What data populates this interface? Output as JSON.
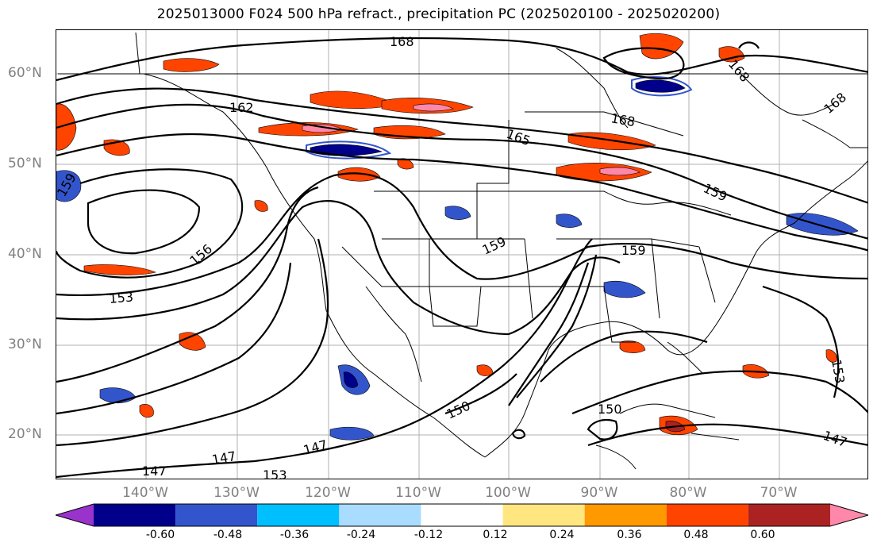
{
  "title": "2025013000 F024 500 hPa refract., precipitation PC (2025020100 - 2025020200)",
  "lat_labels": [
    "60°N",
    "50°N",
    "40°N",
    "30°N",
    "20°N"
  ],
  "lon_labels": [
    "140°W",
    "130°W",
    "120°W",
    "110°W",
    "100°W",
    "90°W",
    "80°W",
    "70°W"
  ],
  "contour_labels": [
    "168",
    "162",
    "165",
    "168",
    "168",
    "168",
    "159",
    "159",
    "156",
    "159",
    "159",
    "153",
    "153",
    "150",
    "150",
    "147",
    "147",
    "147",
    "147",
    "153"
  ],
  "colorbar": {
    "ticks": [
      "-0.60",
      "-0.48",
      "-0.36",
      "-0.24",
      "-0.12",
      "0.12",
      "0.24",
      "0.36",
      "0.48",
      "0.60"
    ],
    "colors": [
      "#9933cc",
      "#00008b",
      "#3355cc",
      "#00bfff",
      "#aadcff",
      "#ffffff",
      "#ffe680",
      "#ff9900",
      "#ff4400",
      "#aa2222",
      "#ff88aa"
    ]
  }
}
